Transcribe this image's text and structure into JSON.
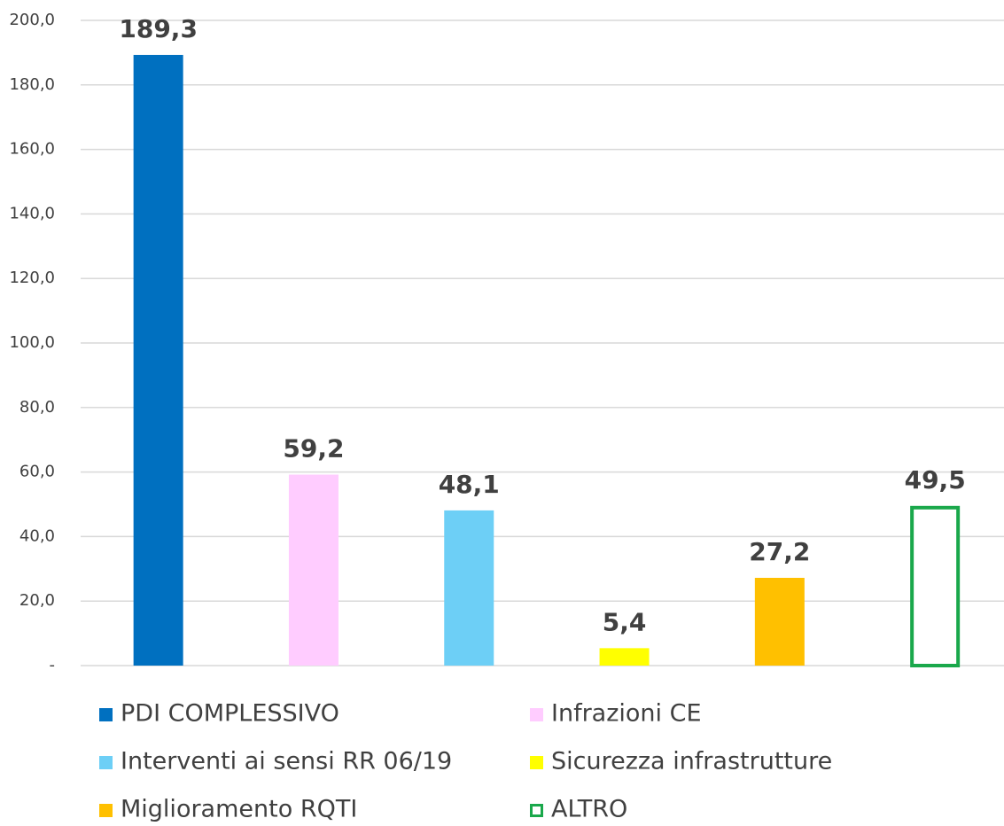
{
  "chart_data": {
    "type": "bar",
    "categories": [
      "PDI COMPLESSIVO",
      "Infrazioni CE",
      "Interventi ai sensi RR 06/19",
      "Sicurezza infrastrutture",
      "Miglioramento RQTI",
      "ALTRO"
    ],
    "values": [
      189.3,
      59.2,
      48.1,
      5.4,
      27.2,
      49.5
    ],
    "value_labels": [
      "189,3",
      "59,2",
      "48,1",
      "5,4",
      "27,2",
      "49,5"
    ],
    "colors": [
      "#0070c0",
      "#ffccff",
      "#6dcff6",
      "#ffff00",
      "#ffc000",
      "#1aa84b"
    ],
    "hollow": [
      false,
      false,
      false,
      false,
      false,
      true
    ],
    "ylim": [
      0,
      200
    ],
    "yticks": [
      {
        "value": 0,
        "label": "-"
      },
      {
        "value": 20,
        "label": "20,0"
      },
      {
        "value": 40,
        "label": "40,0"
      },
      {
        "value": 60,
        "label": "60,0"
      },
      {
        "value": 80,
        "label": "80,0"
      },
      {
        "value": 100,
        "label": "100,0"
      },
      {
        "value": 120,
        "label": "120,0"
      },
      {
        "value": 140,
        "label": "140,0"
      },
      {
        "value": 160,
        "label": "160,0"
      },
      {
        "value": 180,
        "label": "180,0"
      },
      {
        "value": 200,
        "label": "200,0"
      }
    ],
    "grid": true
  }
}
